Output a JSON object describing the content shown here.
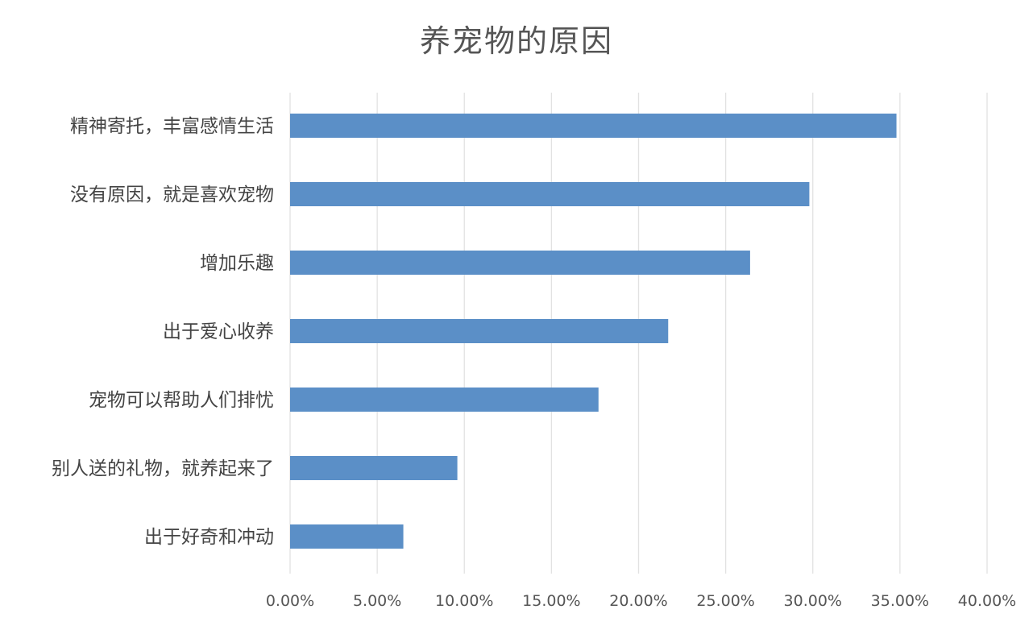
{
  "chart_data": {
    "type": "bar",
    "orientation": "horizontal",
    "title": "养宠物的原因",
    "xlabel": "",
    "ylabel": "",
    "categories": [
      "精神寄托，丰富感情生活",
      "没有原因，就是喜欢宠物",
      "增加乐趣",
      "出于爱心收养",
      "宠物可以帮助人们排忧",
      "别人送的礼物，就养起来了",
      "出于好奇和冲动"
    ],
    "values": [
      34.8,
      29.8,
      26.4,
      21.7,
      17.7,
      9.6,
      6.5
    ],
    "unit": "%",
    "xlim": [
      0,
      40
    ],
    "ticks": [
      0,
      5,
      10,
      15,
      20,
      25,
      30,
      35,
      40
    ],
    "tick_labels": [
      "0.00%",
      "5.00%",
      "10.00%",
      "15.00%",
      "20.00%",
      "25.00%",
      "30.00%",
      "35.00%",
      "40.00%"
    ],
    "grid": true,
    "legend": "none",
    "bar_color": "#5b8fc7"
  }
}
